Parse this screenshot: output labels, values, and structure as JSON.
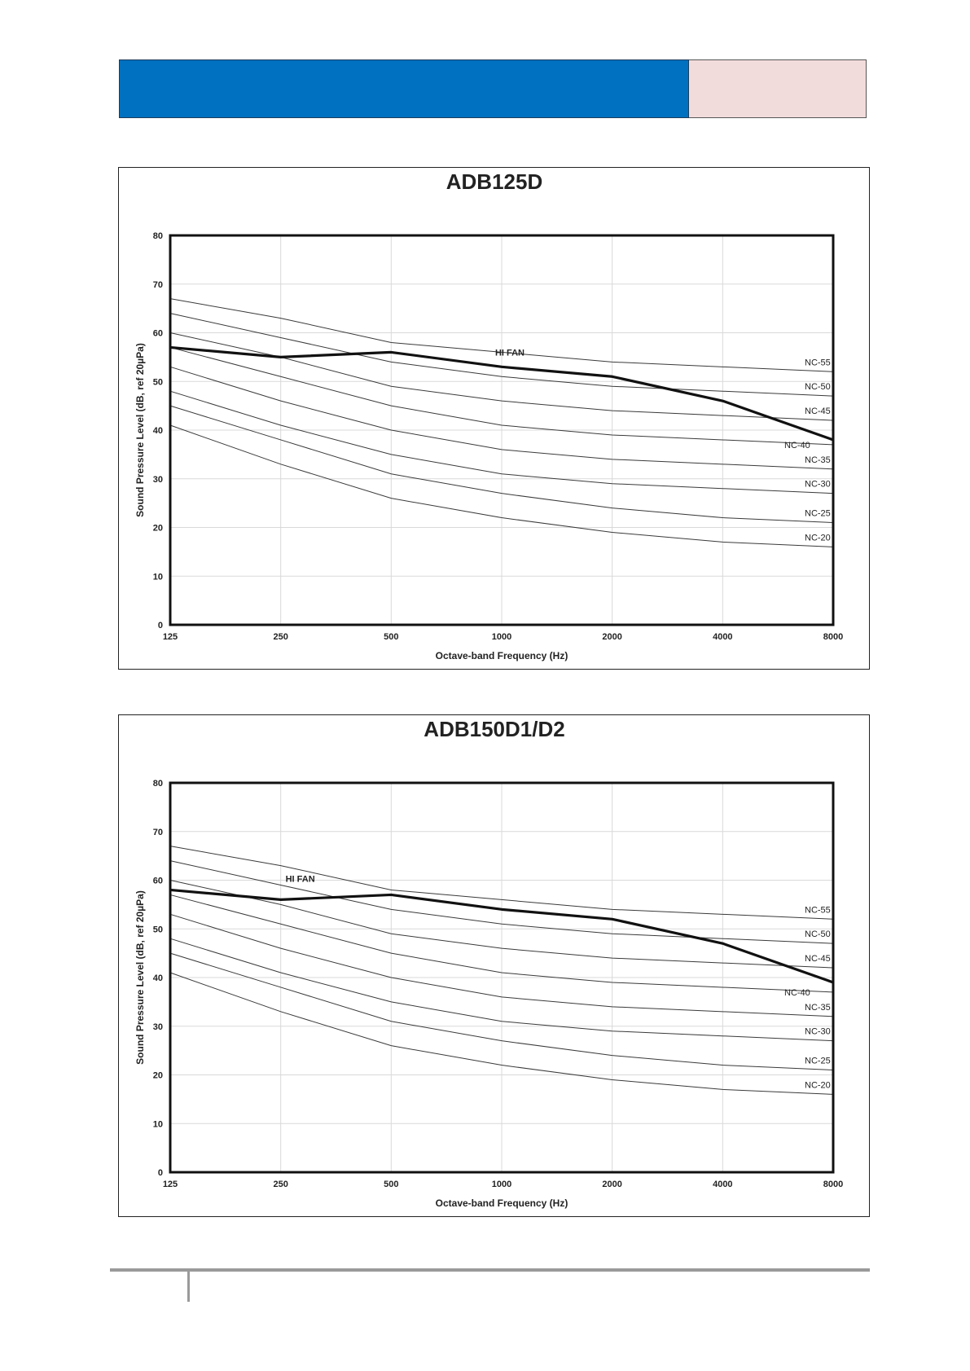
{
  "header": {
    "bar_color": "#0070c0",
    "side_color": "#f2dcdb"
  },
  "chart_data": [
    {
      "type": "line",
      "title": "ADB125D",
      "xlabel": "Octave-band Frequency (Hz)",
      "ylabel": "Sound Pressure Level (dB, ref 20µPa)",
      "x_scale": "log2",
      "categories": [
        "125",
        "250",
        "500",
        "1000",
        "2000",
        "4000",
        "8000"
      ],
      "ylim": [
        0,
        80
      ],
      "yticks": [
        "0",
        "10",
        "20",
        "30",
        "40",
        "50",
        "60",
        "70",
        "80"
      ],
      "grid": true,
      "nc_curves": [
        {
          "name": "NC-55",
          "values": [
            67,
            63,
            58,
            56,
            54,
            53,
            52
          ]
        },
        {
          "name": "NC-50",
          "values": [
            64,
            59,
            54,
            51,
            49,
            48,
            47
          ]
        },
        {
          "name": "NC-45",
          "values": [
            60,
            55,
            49,
            46,
            44,
            43,
            42
          ]
        },
        {
          "name": "NC-40",
          "values": [
            57,
            51,
            45,
            41,
            39,
            38,
            37
          ]
        },
        {
          "name": "NC-35",
          "values": [
            53,
            46,
            40,
            36,
            34,
            33,
            32
          ]
        },
        {
          "name": "NC-30",
          "values": [
            48,
            41,
            35,
            31,
            29,
            28,
            27
          ]
        },
        {
          "name": "NC-25",
          "values": [
            45,
            38,
            31,
            27,
            24,
            22,
            21
          ]
        },
        {
          "name": "NC-20",
          "values": [
            41,
            33,
            26,
            22,
            19,
            17,
            16
          ]
        }
      ],
      "series": [
        {
          "name": "HI FAN",
          "values": [
            57,
            55,
            56,
            53,
            51,
            46,
            38
          ]
        }
      ]
    },
    {
      "type": "line",
      "title": "ADB150D1/D2",
      "xlabel": "Octave-band Frequency (Hz)",
      "ylabel": "Sound Pressure Level (dB, ref 20µPa)",
      "x_scale": "log2",
      "categories": [
        "125",
        "250",
        "500",
        "1000",
        "2000",
        "4000",
        "8000"
      ],
      "ylim": [
        0,
        80
      ],
      "yticks": [
        "0",
        "10",
        "20",
        "30",
        "40",
        "50",
        "60",
        "70",
        "80"
      ],
      "grid": true,
      "nc_curves": [
        {
          "name": "NC-55",
          "values": [
            67,
            63,
            58,
            56,
            54,
            53,
            52
          ]
        },
        {
          "name": "NC-50",
          "values": [
            64,
            59,
            54,
            51,
            49,
            48,
            47
          ]
        },
        {
          "name": "NC-45",
          "values": [
            60,
            55,
            49,
            46,
            44,
            43,
            42
          ]
        },
        {
          "name": "NC-40",
          "values": [
            57,
            51,
            45,
            41,
            39,
            38,
            37
          ]
        },
        {
          "name": "NC-35",
          "values": [
            53,
            46,
            40,
            36,
            34,
            33,
            32
          ]
        },
        {
          "name": "NC-30",
          "values": [
            48,
            41,
            35,
            31,
            29,
            28,
            27
          ]
        },
        {
          "name": "NC-25",
          "values": [
            45,
            38,
            31,
            27,
            24,
            22,
            21
          ]
        },
        {
          "name": "NC-20",
          "values": [
            41,
            33,
            26,
            22,
            19,
            17,
            16
          ]
        }
      ],
      "series": [
        {
          "name": "HI FAN",
          "values": [
            58,
            56,
            57,
            54,
            52,
            47,
            39
          ]
        }
      ]
    }
  ]
}
